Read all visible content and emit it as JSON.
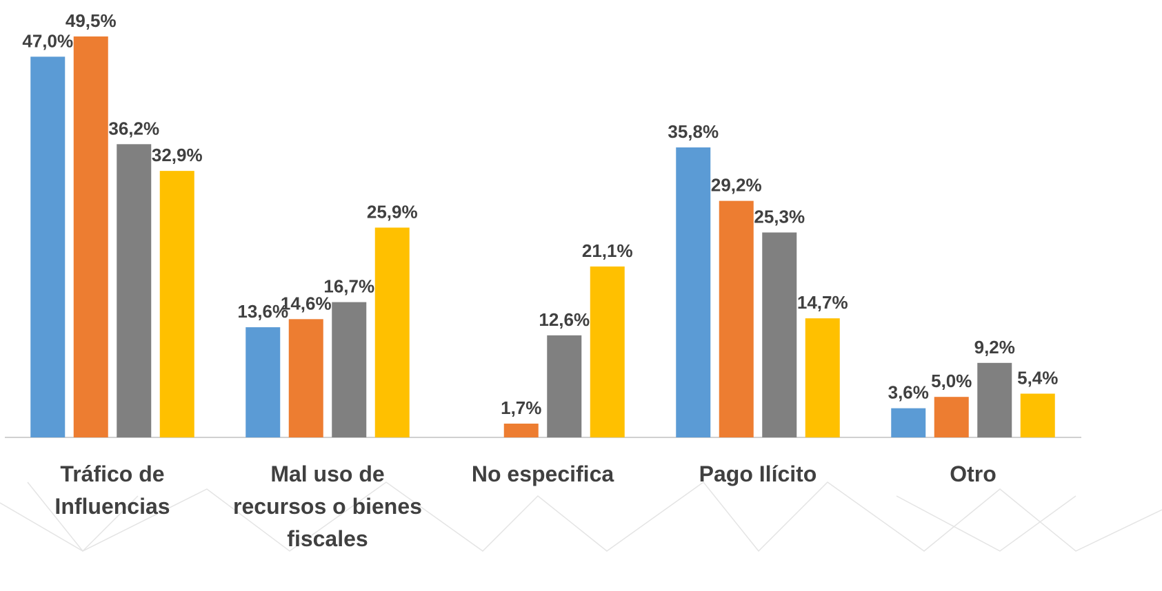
{
  "chart_data": {
    "type": "bar",
    "categories": [
      "Tráfico de Influencias",
      "Mal uso de recursos o bienes fiscales",
      "No especifica",
      "Pago Ilícito",
      "Otro"
    ],
    "series": [
      {
        "color": "#5b9bd5",
        "values": [
          47.0,
          13.6,
          null,
          35.8,
          3.6
        ],
        "value_labels": [
          "47,0%",
          "13,6%",
          null,
          "35,8%",
          "3,6%"
        ]
      },
      {
        "color": "#ed7d31",
        "values": [
          49.5,
          14.6,
          1.7,
          29.2,
          5.0
        ],
        "value_labels": [
          "49,5%",
          "14,6%",
          "1,7%",
          "29,2%",
          "5,0%"
        ]
      },
      {
        "color": "#808080",
        "values": [
          36.2,
          16.7,
          12.6,
          25.3,
          9.2
        ],
        "value_labels": [
          "36,2%",
          "16,7%",
          "12,6%",
          "25,3%",
          "9,2%"
        ]
      },
      {
        "color": "#ffc000",
        "values": [
          32.9,
          25.9,
          21.1,
          14.7,
          5.4
        ],
        "value_labels": [
          "32,9%",
          "25,9%",
          "21,1%",
          "14,7%",
          "5,4%"
        ]
      }
    ],
    "ylim": [
      0,
      54
    ]
  }
}
